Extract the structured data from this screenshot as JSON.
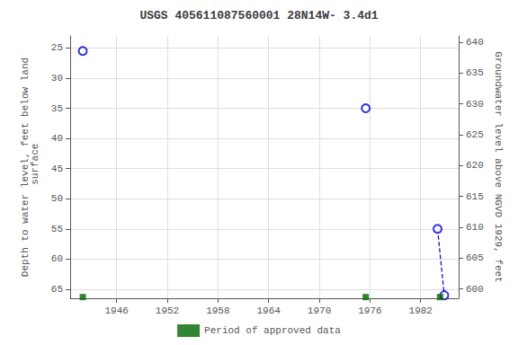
{
  "chart_data": {
    "type": "scatter",
    "title": "USGS 405611087560001 28N14W- 3.4d1",
    "ylabel": "Depth to water level, feet below land\n surface",
    "y2label": "Groundwater level above NGVD 1929, feet",
    "xlim": [
      1940.5,
      1986.5
    ],
    "xticks": [
      1946,
      1952,
      1958,
      1964,
      1970,
      1976,
      1982
    ],
    "ylim": [
      66.5,
      23
    ],
    "yticks": [
      25,
      30,
      35,
      40,
      45,
      50,
      55,
      60,
      65
    ],
    "y2lim": [
      598.5,
      641
    ],
    "y2ticks": [
      600,
      605,
      610,
      615,
      620,
      625,
      630,
      635,
      640
    ],
    "grid": true,
    "legend": "bottom",
    "series": [
      {
        "type": "scatter",
        "marker": "circle",
        "color": "#0000cc",
        "x": [
          1942.0,
          1975.5,
          1984.0,
          1984.8
        ],
        "values": [
          25.5,
          35.0,
          55.0,
          66.0
        ]
      },
      {
        "type": "line",
        "line_style": "dashed",
        "color": "#0000cc",
        "x": [
          1984.0,
          1984.8
        ],
        "values": [
          55.0,
          66.0
        ]
      },
      {
        "name": "Period of approved data",
        "type": "scatter",
        "marker": "square",
        "color": "#006600",
        "x": [
          1942.0,
          1975.5,
          1984.3
        ],
        "values": [
          66.3,
          66.3,
          66.3
        ]
      }
    ]
  }
}
